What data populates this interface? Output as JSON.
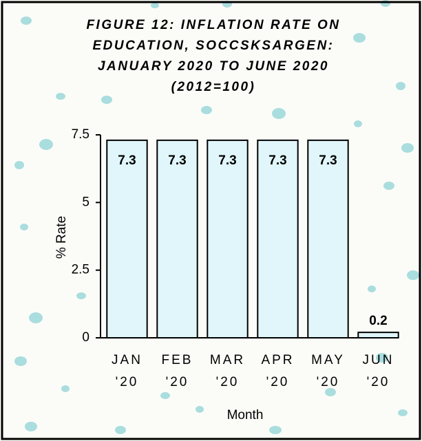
{
  "chart_data": {
    "type": "bar",
    "title": [
      "FIGURE 12: INFLATION RATE ON",
      "EDUCATION, SOCCSKSARGEN:",
      "JANUARY 2020 TO JUNE 2020",
      "(2012=100)"
    ],
    "x_label": "Month",
    "y_label": "% Rate",
    "categories": [
      [
        "JAN",
        "'20"
      ],
      [
        "FEB",
        "'20"
      ],
      [
        "MAR",
        "'20"
      ],
      [
        "APR",
        "'20"
      ],
      [
        "MAY",
        "'20"
      ],
      [
        "JUN",
        "'20"
      ]
    ],
    "values": [
      7.3,
      7.3,
      7.3,
      7.3,
      7.3,
      0.2
    ],
    "color": "#e0f6fa",
    "ylim": [
      0,
      7.5
    ],
    "yticks": [
      0,
      2.5,
      5,
      7.5
    ],
    "grid": false
  }
}
